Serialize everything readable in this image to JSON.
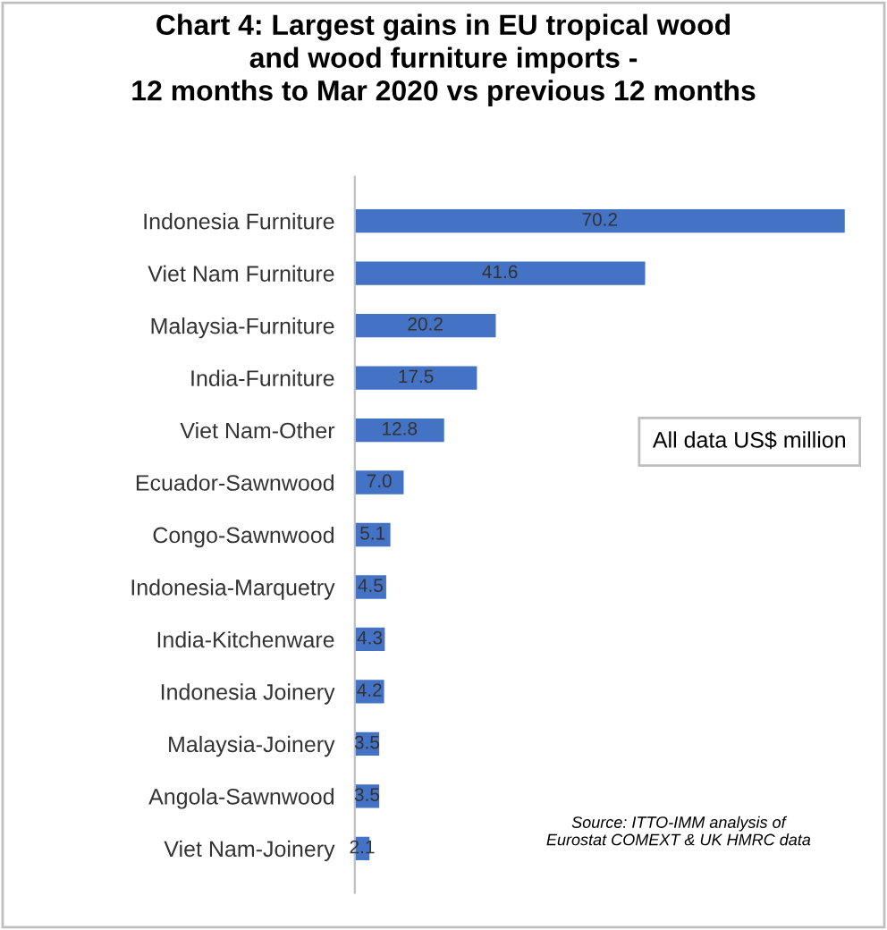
{
  "chart_data": {
    "type": "bar",
    "orientation": "horizontal",
    "title": "Chart 4: Largest gains in EU tropical wood\nand wood furniture imports -\n12 months to Mar 2020 vs previous 12 months",
    "categories": [
      "Indonesia Furniture",
      "Viet Nam Furniture",
      "Malaysia-Furniture",
      "India-Furniture",
      "Viet Nam-Other",
      "Ecuador-Sawnwood",
      "Congo-Sawnwood",
      "Indonesia-Marquetry",
      "India-Kitchenware",
      "Indonesia Joinery",
      "Malaysia-Joinery",
      "Angola-Sawnwood",
      "Viet Nam-Joinery"
    ],
    "values": [
      70.2,
      41.6,
      20.2,
      17.5,
      12.8,
      7.0,
      5.1,
      4.5,
      4.3,
      4.2,
      3.5,
      3.5,
      2.1
    ],
    "value_labels": [
      "70.2",
      "41.6",
      "20.2",
      "17.5",
      "12.8",
      "7.0",
      "5.1",
      "4.5",
      "4.3",
      "4.2",
      "3.5",
      "3.5",
      "2.1"
    ],
    "color": "#4472c4",
    "annotations": [
      "All data US$ million",
      "Source: ITTO-IMM analysis of\nEurostat COMEXT & UK HMRC data"
    ],
    "grid": false,
    "legend": false
  }
}
